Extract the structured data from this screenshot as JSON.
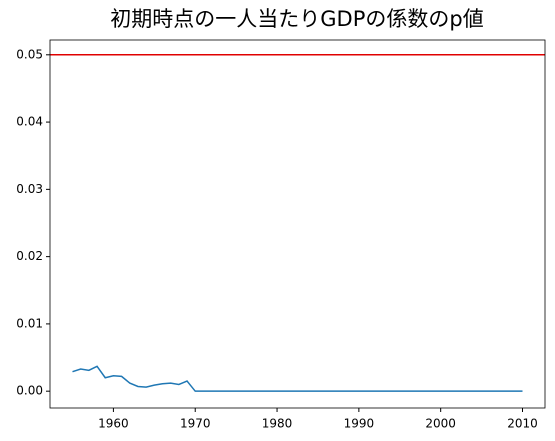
{
  "chart_data": {
    "type": "line",
    "title": "初期時点の一人当たりGDPの係数のp値",
    "x": [
      1955,
      1956,
      1957,
      1958,
      1959,
      1960,
      1961,
      1962,
      1963,
      1964,
      1965,
      1966,
      1967,
      1968,
      1969,
      1970,
      1971,
      1972,
      1973,
      1974,
      1975,
      1976,
      1977,
      1978,
      1979,
      1980,
      1981,
      1982,
      1983,
      1984,
      1985,
      1986,
      1987,
      1988,
      1989,
      1990,
      1991,
      1992,
      1993,
      1994,
      1995,
      1996,
      1997,
      1998,
      1999,
      2000,
      2001,
      2002,
      2003,
      2004,
      2005,
      2006,
      2007,
      2008,
      2009,
      2010
    ],
    "values": [
      0.0029,
      0.0033,
      0.0031,
      0.0037,
      0.002,
      0.0023,
      0.0022,
      0.0012,
      0.0007,
      0.0006,
      0.0009,
      0.0011,
      0.0012,
      0.001,
      0.0015,
      0,
      0,
      0,
      0,
      0,
      0,
      0,
      0,
      0,
      0,
      0,
      0,
      0,
      0,
      0,
      0,
      0,
      0,
      0,
      0,
      0,
      0,
      0,
      0,
      0,
      0,
      0,
      0,
      0,
      0,
      0,
      0,
      0,
      0,
      0,
      0,
      0,
      0,
      0,
      0,
      0
    ],
    "color": "#1f77b4",
    "hline": {
      "value": 0.05,
      "color": "#e00000"
    },
    "xlim": [
      1952.25,
      2012.75
    ],
    "xticks": [
      1960,
      1970,
      1980,
      1990,
      2000,
      2010
    ],
    "ylim": [
      -0.0025,
      0.0522
    ],
    "yticks": [
      {
        "value": 0,
        "label": "0.00"
      },
      {
        "value": 0.01,
        "label": "0.01"
      },
      {
        "value": 0.02,
        "label": "0.02"
      },
      {
        "value": 0.03,
        "label": "0.03"
      },
      {
        "value": 0.04,
        "label": "0.04"
      },
      {
        "value": 0.05,
        "label": "0.05"
      }
    ]
  }
}
